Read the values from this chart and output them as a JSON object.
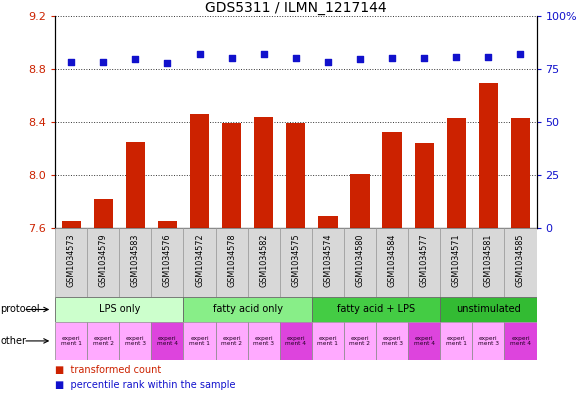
{
  "title": "GDS5311 / ILMN_1217144",
  "samples": [
    "GSM1034573",
    "GSM1034579",
    "GSM1034583",
    "GSM1034576",
    "GSM1034572",
    "GSM1034578",
    "GSM1034582",
    "GSM1034575",
    "GSM1034574",
    "GSM1034580",
    "GSM1034584",
    "GSM1034577",
    "GSM1034571",
    "GSM1034581",
    "GSM1034585"
  ],
  "bar_values": [
    7.65,
    7.82,
    8.25,
    7.65,
    8.46,
    8.39,
    8.44,
    8.39,
    7.69,
    8.01,
    8.32,
    8.24,
    8.43,
    8.69,
    8.43
  ],
  "dot_left_values": [
    8.85,
    8.85,
    8.87,
    8.84,
    8.91,
    8.88,
    8.91,
    8.88,
    8.85,
    8.87,
    8.88,
    8.88,
    8.89,
    8.89,
    8.91
  ],
  "ylim_left": [
    7.6,
    9.2
  ],
  "yticks_left": [
    7.6,
    8.0,
    8.4,
    8.8,
    9.2
  ],
  "yticks_right": [
    0,
    25,
    50,
    75,
    100
  ],
  "bar_color": "#cc2200",
  "dot_color": "#1111cc",
  "bg_color": "#d8d8d8",
  "plot_bg": "#ffffff",
  "grid_color": "#333333",
  "protocol_groups": [
    {
      "label": "LPS only",
      "start": 0,
      "end": 4,
      "color": "#ccffcc"
    },
    {
      "label": "fatty acid only",
      "start": 4,
      "end": 8,
      "color": "#88ee88"
    },
    {
      "label": "fatty acid + LPS",
      "start": 8,
      "end": 12,
      "color": "#44cc44"
    },
    {
      "label": "unstimulated",
      "start": 12,
      "end": 15,
      "color": "#33bb33"
    }
  ],
  "other_colors": [
    "#ffaaff",
    "#ffaaff",
    "#ffaaff",
    "#dd44dd",
    "#ffaaff",
    "#ffaaff",
    "#ffaaff",
    "#dd44dd",
    "#ffaaff",
    "#ffaaff",
    "#ffaaff",
    "#dd44dd",
    "#ffaaff",
    "#ffaaff",
    "#dd44dd"
  ],
  "other_labels": [
    "experi\nment 1",
    "experi\nment 2",
    "experi\nment 3",
    "experi\nment 4",
    "experi\nment 1",
    "experi\nment 2",
    "experi\nment 3",
    "experi\nment 4",
    "experi\nment 1",
    "experi\nment 2",
    "experi\nment 3",
    "experi\nment 4",
    "experi\nment 1",
    "experi\nment 3",
    "experi\nment 4"
  ]
}
